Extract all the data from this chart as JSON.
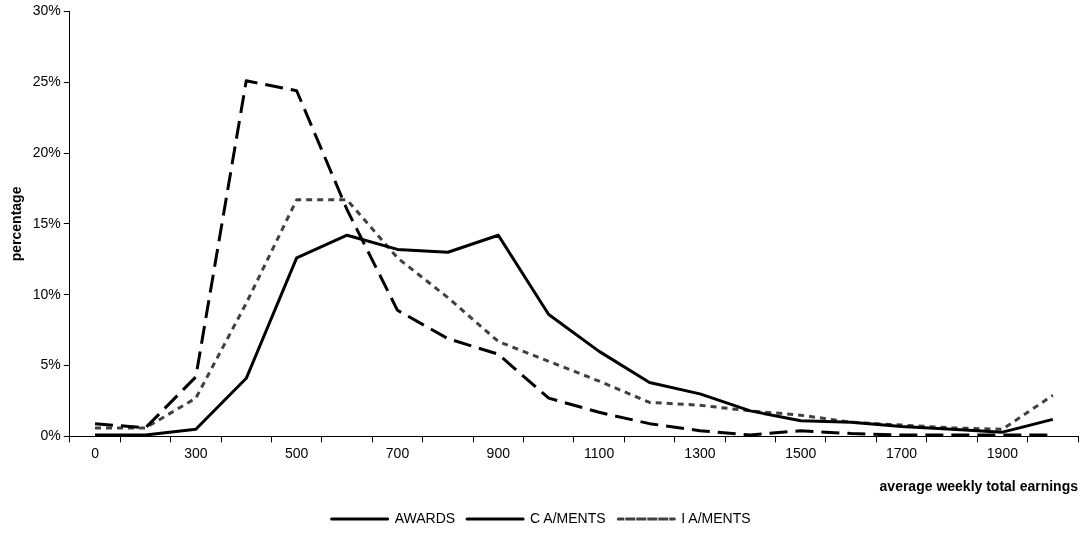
{
  "chart_data": {
    "type": "line",
    "xlabel": "average weekly total earnings",
    "ylabel": "percentage",
    "categories": [
      "0",
      null,
      "300",
      null,
      "500",
      null,
      "700",
      null,
      "900",
      null,
      "1100",
      null,
      "1300",
      null,
      "1500",
      null,
      "1700",
      null,
      "1900",
      null
    ],
    "series": [
      {
        "name": "AWARDS",
        "color": "#000000",
        "line_style": "dashed",
        "values": [
          0.9,
          0.6,
          4.2,
          25.1,
          24.4,
          16.0,
          8.9,
          6.9,
          5.8,
          2.7,
          1.7,
          0.9,
          0.4,
          0.1,
          0.4,
          0.2,
          0.1,
          0.1,
          0.1,
          0.1
        ]
      },
      {
        "name": "C A/MENTS",
        "color": "#000000",
        "line_style": "solid",
        "values": [
          0.1,
          0.1,
          0.5,
          4.1,
          12.6,
          14.2,
          13.2,
          13.0,
          14.2,
          8.6,
          6.0,
          3.8,
          3.0,
          1.8,
          1.1,
          1.0,
          0.7,
          0.5,
          0.3,
          1.2
        ]
      },
      {
        "name": "I A/MENTS",
        "color": "#404040",
        "line_style": "dotted",
        "values": [
          0.6,
          0.6,
          2.7,
          9.4,
          16.7,
          16.7,
          12.6,
          9.8,
          6.7,
          5.3,
          3.9,
          2.4,
          2.2,
          1.8,
          1.5,
          1.0,
          0.8,
          0.6,
          0.5,
          2.9
        ]
      }
    ],
    "ylim": [
      0,
      30
    ],
    "yticks": [
      {
        "value": 0,
        "label": "0%"
      },
      {
        "value": 5,
        "label": "5%"
      },
      {
        "value": 10,
        "label": "10%"
      },
      {
        "value": 15,
        "label": "15%"
      },
      {
        "value": 20,
        "label": "20%"
      },
      {
        "value": 25,
        "label": "25%"
      },
      {
        "value": 30,
        "label": "30%"
      }
    ],
    "grid": false,
    "legend": "bottom",
    "marker": "none"
  }
}
